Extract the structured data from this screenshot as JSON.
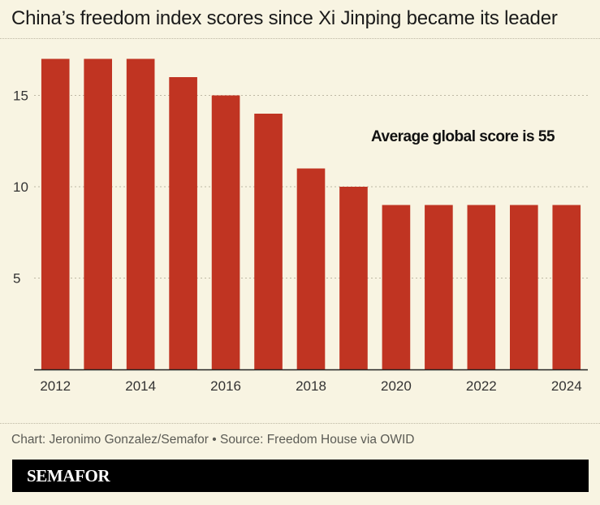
{
  "title": "China’s freedom index scores since Xi Jinping became its leader",
  "annotation": "Average global score is 55",
  "credit": "Chart: Jeronimo Gonzalez/Semafor • Source: Freedom House via OWID",
  "brand": "SEMAFOR",
  "colors": {
    "bar": "#c03422",
    "background": "#f8f4e2",
    "grid": "#bdb8a4"
  },
  "chart_data": {
    "type": "bar",
    "title": "China’s freedom index scores since Xi Jinping became its leader",
    "categories": [
      "2012",
      "2013",
      "2014",
      "2015",
      "2016",
      "2017",
      "2018",
      "2019",
      "2020",
      "2021",
      "2022",
      "2023",
      "2024"
    ],
    "values": [
      17,
      17,
      17,
      16,
      15,
      14,
      11,
      10,
      9,
      9,
      9,
      9,
      9
    ],
    "x_tick_labels": [
      "2012",
      "2014",
      "2016",
      "2018",
      "2020",
      "2022",
      "2024"
    ],
    "y_ticks": [
      5,
      10,
      15
    ],
    "ylim": [
      0,
      18
    ],
    "grid": true,
    "annotations": [
      "Average global score is 55"
    ]
  }
}
